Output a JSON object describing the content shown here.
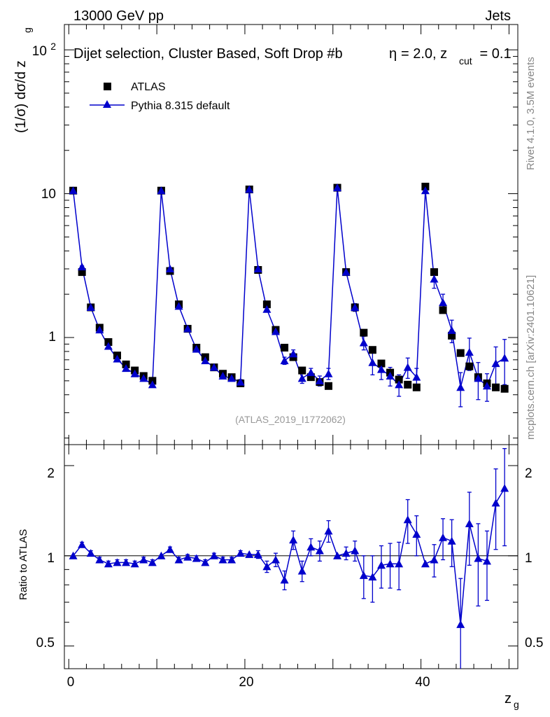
{
  "header": {
    "energy_label": "13000 GeV pp",
    "process_label": "Jets",
    "side_label_top": "Rivet 4.1.0,  3.5M events",
    "side_label_bottom": "mcplots.cern.ch [arXiv:2401.10621]"
  },
  "chart_data": {
    "type": "scatter",
    "title": "Dijet selection, Cluster Based, Soft Drop #b",
    "title_suffix": "= 2.0, z",
    "title_sub": "cut",
    "title_end": " = 0.1",
    "title_greek": "η",
    "analysis_id": "(ATLAS_2019_I1772062)",
    "xlabel": "z",
    "xlabel_sub": "g",
    "ylabel": "(1/σ) dσ/d z",
    "ylabel_sub": "g",
    "ratio_ylabel": "Ratio to ATLAS",
    "xlim": [
      -0.5,
      51
    ],
    "ylim": [
      0.18,
      150
    ],
    "ratio_ylim": [
      0.42,
      2.35
    ],
    "yscale": "log",
    "x_ticks": [
      "0",
      "20",
      "40"
    ],
    "y_ticks": [
      "1",
      "10",
      "10^2"
    ],
    "ratio_y_ticks": [
      "0.5",
      "1",
      "2"
    ],
    "legend": [
      {
        "name": "ATLAS",
        "marker": "square",
        "color": "#000000"
      },
      {
        "name": "Pythia 8.315 default",
        "marker": "triangle",
        "color": "#0000cc"
      }
    ],
    "x": [
      0.5,
      1.5,
      2.5,
      3.5,
      4.5,
      5.5,
      6.5,
      7.5,
      8.5,
      9.5,
      10.5,
      11.5,
      12.5,
      13.5,
      14.5,
      15.5,
      16.5,
      17.5,
      18.5,
      19.5,
      20.5,
      21.5,
      22.5,
      23.5,
      24.5,
      25.5,
      26.5,
      27.5,
      28.5,
      29.5,
      30.5,
      31.5,
      32.5,
      33.5,
      34.5,
      35.5,
      36.5,
      37.5,
      38.5,
      39.5,
      40.5,
      41.5,
      42.5,
      43.5,
      44.5,
      45.5,
      46.5,
      47.5,
      48.5,
      49.5
    ],
    "series": [
      {
        "name": "ATLAS",
        "values": [
          10.5,
          2.85,
          1.62,
          1.17,
          0.93,
          0.75,
          0.65,
          0.59,
          0.54,
          0.5,
          10.5,
          2.9,
          1.7,
          1.15,
          0.85,
          0.73,
          0.62,
          0.56,
          0.53,
          0.48,
          10.7,
          2.95,
          1.7,
          1.13,
          0.85,
          0.73,
          0.59,
          0.53,
          0.49,
          0.46,
          11.0,
          2.85,
          1.62,
          1.08,
          0.82,
          0.66,
          0.57,
          0.51,
          0.47,
          0.45,
          11.2,
          2.85,
          1.55,
          1.03,
          0.78,
          0.63,
          0.53,
          0.48,
          0.45,
          0.44
        ]
      },
      {
        "name": "Pythia 8.315 default",
        "values": [
          10.5,
          3.1,
          1.62,
          1.13,
          0.87,
          0.71,
          0.61,
          0.56,
          0.52,
          0.47,
          10.5,
          3.0,
          1.65,
          1.15,
          0.83,
          0.69,
          0.62,
          0.54,
          0.52,
          0.49,
          10.7,
          3.0,
          1.57,
          1.1,
          0.69,
          0.77,
          0.52,
          0.57,
          0.5,
          0.56,
          11.0,
          2.85,
          1.62,
          0.92,
          0.67,
          0.6,
          0.54,
          0.47,
          0.62,
          0.53,
          10.5,
          2.55,
          1.75,
          1.12,
          0.45,
          0.79,
          0.52,
          0.46,
          0.66,
          0.72
        ],
        "errors": [
          0,
          0.05,
          0.03,
          0.02,
          0.02,
          0.02,
          0.02,
          0.02,
          0.02,
          0.02,
          0,
          0.05,
          0.03,
          0.02,
          0.02,
          0.02,
          0.02,
          0.02,
          0.02,
          0.02,
          0,
          0.08,
          0.05,
          0.04,
          0.04,
          0.05,
          0.04,
          0.04,
          0.04,
          0.05,
          0,
          0.15,
          0.1,
          0.1,
          0.12,
          0.09,
          0.08,
          0.08,
          0.1,
          0.08,
          0,
          0.35,
          0.25,
          0.2,
          0.12,
          0.2,
          0.15,
          0.1,
          0.2,
          0.25
        ]
      }
    ],
    "ratio": {
      "name": "Pythia 8.315 default / ATLAS",
      "values": [
        1.0,
        1.09,
        1.02,
        0.97,
        0.94,
        0.95,
        0.95,
        0.94,
        0.97,
        0.95,
        1.0,
        1.05,
        0.97,
        0.99,
        0.98,
        0.95,
        1.0,
        0.97,
        0.97,
        1.02,
        1.01,
        1.01,
        0.92,
        0.97,
        0.83,
        1.13,
        0.89,
        1.07,
        1.04,
        1.21,
        1.0,
        1.02,
        1.04,
        0.86,
        0.85,
        0.93,
        0.94,
        0.94,
        1.32,
        1.18,
        0.94,
        0.97,
        1.15,
        1.12,
        0.59,
        1.28,
        0.98,
        0.96,
        1.5,
        1.68
      ],
      "errors": [
        0,
        0.02,
        0.02,
        0.02,
        0.02,
        0.02,
        0.02,
        0.02,
        0.02,
        0.02,
        0,
        0.02,
        0.02,
        0.02,
        0.02,
        0.02,
        0.02,
        0.02,
        0.02,
        0.02,
        0,
        0.03,
        0.04,
        0.05,
        0.06,
        0.08,
        0.07,
        0.07,
        0.08,
        0.1,
        0,
        0.05,
        0.08,
        0.14,
        0.15,
        0.15,
        0.16,
        0.17,
        0.22,
        0.18,
        0,
        0.12,
        0.18,
        0.2,
        0.25,
        0.35,
        0.3,
        0.25,
        0.45,
        0.6
      ]
    }
  }
}
